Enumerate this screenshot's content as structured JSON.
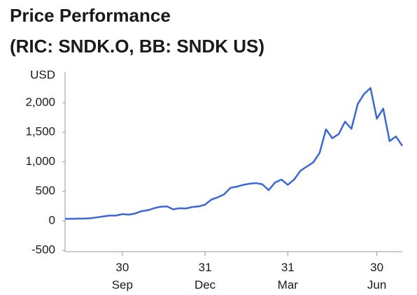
{
  "chart_data": {
    "type": "line",
    "title": [
      "Price Performance",
      "(RIC: SNDK.O, BB: SNDK US)"
    ],
    "y_label": "USD",
    "categories": [
      null,
      null,
      null,
      null,
      null,
      null,
      null,
      null,
      null,
      "30 Sep",
      null,
      null,
      null,
      null,
      null,
      null,
      null,
      null,
      null,
      null,
      null,
      null,
      "31 Dec",
      null,
      null,
      null,
      null,
      null,
      null,
      null,
      null,
      null,
      null,
      null,
      null,
      "31 Mar",
      null,
      null,
      null,
      null,
      null,
      null,
      null,
      null,
      null,
      null,
      null,
      null,
      null,
      "30 Jun",
      null,
      null,
      null,
      null
    ],
    "series": [
      {
        "color": "#3a66d6",
        "values": [
          35,
          36,
          38,
          40,
          45,
          60,
          75,
          90,
          90,
          115,
          105,
          125,
          165,
          180,
          215,
          240,
          245,
          195,
          215,
          210,
          235,
          245,
          275,
          360,
          400,
          450,
          560,
          580,
          610,
          630,
          640,
          620,
          520,
          650,
          700,
          610,
          700,
          850,
          920,
          990,
          1150,
          1550,
          1400,
          1470,
          1680,
          1560,
          1980,
          2150,
          2250,
          1730,
          1900,
          1350,
          1430,
          1270
        ]
      }
    ],
    "ylim": [
      -525,
      2500
    ],
    "yticks": [
      {
        "value": -500,
        "label": "-500"
      },
      0,
      500,
      {
        "value": 1000,
        "label": "1,000"
      },
      {
        "value": 1500,
        "label": "1,500"
      },
      {
        "value": 2000,
        "label": "2,000"
      }
    ]
  }
}
